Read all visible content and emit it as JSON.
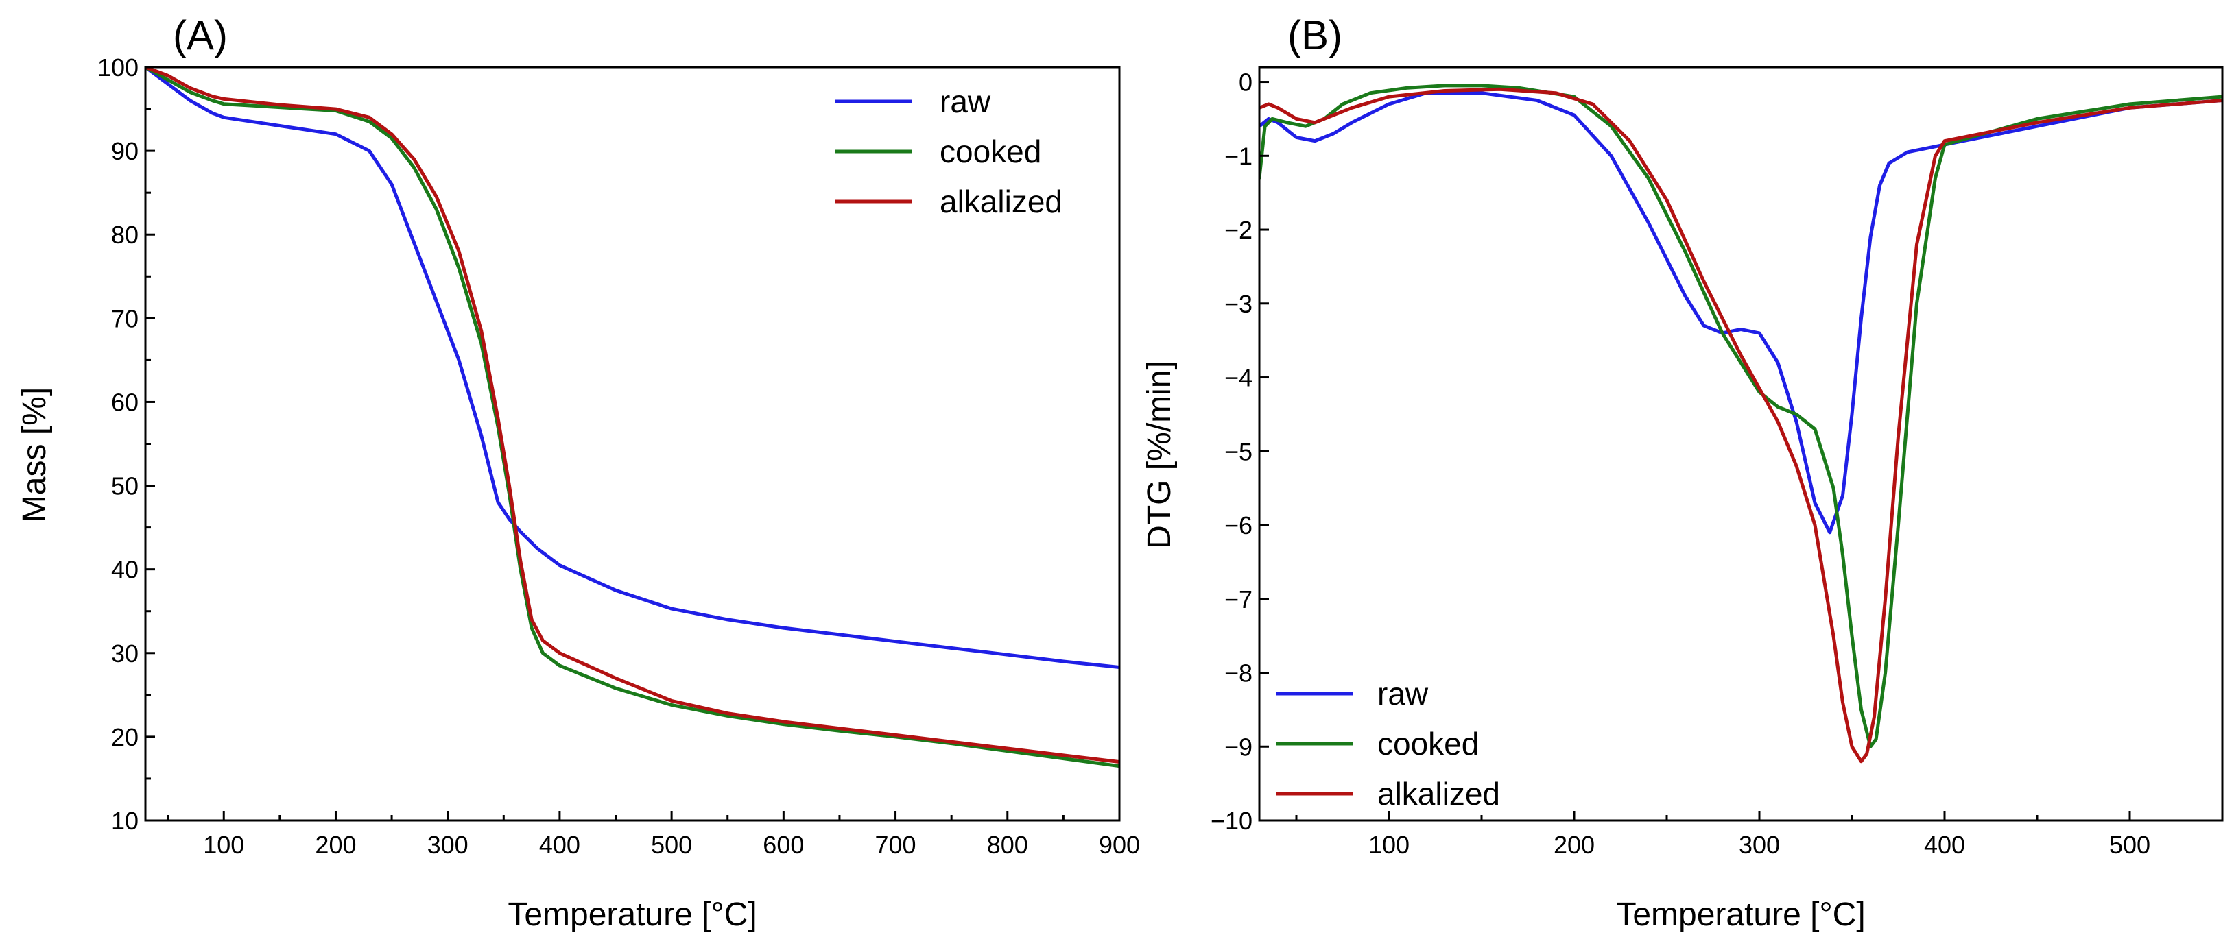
{
  "colors": {
    "raw": "#1f1fe6",
    "cooked": "#1a7a1a",
    "alkalized": "#b31212"
  },
  "chart_data": [
    {
      "type": "line",
      "panel_label": "(A)",
      "xlabel": "Temperature [°C]",
      "ylabel": "Mass [%]",
      "xlim": [
        30,
        900
      ],
      "ylim": [
        10,
        100
      ],
      "xticks": [
        100,
        200,
        300,
        400,
        500,
        600,
        700,
        800,
        900
      ],
      "yticks": [
        10,
        20,
        30,
        40,
        50,
        60,
        70,
        80,
        90,
        100
      ],
      "grid": false,
      "legend_position": "top-right",
      "series": [
        {
          "name": "raw",
          "color_key": "raw",
          "x": [
            30,
            50,
            70,
            90,
            100,
            150,
            200,
            230,
            250,
            270,
            290,
            310,
            330,
            345,
            355,
            365,
            380,
            400,
            450,
            500,
            550,
            600,
            650,
            700,
            750,
            800,
            850,
            900
          ],
          "y": [
            100,
            98,
            96,
            94.5,
            94,
            93,
            92,
            90,
            86,
            79,
            72,
            65,
            56,
            48,
            46,
            44.5,
            42.5,
            40.5,
            37.5,
            35.3,
            34,
            33,
            32.2,
            31.4,
            30.6,
            29.8,
            29,
            28.3
          ]
        },
        {
          "name": "cooked",
          "color_key": "cooked",
          "x": [
            30,
            50,
            70,
            90,
            100,
            150,
            200,
            230,
            250,
            270,
            290,
            310,
            330,
            345,
            355,
            365,
            375,
            385,
            400,
            450,
            500,
            550,
            600,
            650,
            700,
            750,
            800,
            850,
            900
          ],
          "y": [
            100,
            98.5,
            97,
            96,
            95.6,
            95.2,
            94.8,
            93.5,
            91.5,
            88,
            83,
            76,
            67,
            57,
            49,
            40,
            33,
            30,
            28.5,
            25.8,
            23.8,
            22.5,
            21.5,
            20.7,
            20,
            19.2,
            18.3,
            17.4,
            16.5
          ]
        },
        {
          "name": "alkalized",
          "color_key": "alkalized",
          "x": [
            30,
            50,
            70,
            90,
            100,
            150,
            200,
            230,
            250,
            270,
            290,
            310,
            330,
            345,
            355,
            365,
            375,
            385,
            400,
            450,
            500,
            550,
            600,
            650,
            700,
            750,
            800,
            850,
            900
          ],
          "y": [
            100,
            99,
            97.5,
            96.5,
            96.2,
            95.5,
            95,
            94,
            92,
            89,
            84.5,
            78,
            68.5,
            58,
            50,
            41,
            34,
            31.5,
            30,
            27,
            24.3,
            22.8,
            21.8,
            21,
            20.2,
            19.4,
            18.6,
            17.8,
            17
          ]
        }
      ]
    },
    {
      "type": "line",
      "panel_label": "(B)",
      "xlabel": "Temperature [°C]",
      "ylabel": "DTG [%/min]",
      "xlim": [
        30,
        550
      ],
      "ylim": [
        -10,
        0.2
      ],
      "xticks": [
        100,
        200,
        300,
        400,
        500
      ],
      "yticks": [
        0,
        -1,
        -2,
        -3,
        -4,
        -5,
        -6,
        -7,
        -8,
        -9,
        -10
      ],
      "grid": false,
      "legend_position": "bottom-left",
      "series": [
        {
          "name": "raw",
          "color_key": "raw",
          "x": [
            30,
            35,
            40,
            50,
            60,
            70,
            80,
            100,
            120,
            150,
            180,
            200,
            220,
            240,
            250,
            260,
            270,
            280,
            290,
            300,
            310,
            320,
            330,
            338,
            345,
            350,
            355,
            360,
            365,
            370,
            380,
            400,
            450,
            500,
            550
          ],
          "y": [
            -0.6,
            -0.5,
            -0.55,
            -0.75,
            -0.8,
            -0.7,
            -0.55,
            -0.3,
            -0.15,
            -0.15,
            -0.25,
            -0.45,
            -1,
            -1.9,
            -2.4,
            -2.9,
            -3.3,
            -3.4,
            -3.35,
            -3.4,
            -3.8,
            -4.6,
            -5.7,
            -6.1,
            -5.6,
            -4.5,
            -3.2,
            -2.1,
            -1.4,
            -1.1,
            -0.95,
            -0.85,
            -0.6,
            -0.35,
            -0.25
          ]
        },
        {
          "name": "cooked",
          "color_key": "cooked",
          "x": [
            30,
            33,
            37,
            45,
            55,
            65,
            75,
            90,
            110,
            130,
            150,
            170,
            200,
            220,
            240,
            260,
            280,
            300,
            310,
            320,
            330,
            340,
            345,
            350,
            355,
            360,
            363,
            368,
            375,
            385,
            395,
            400,
            450,
            500,
            550
          ],
          "y": [
            -1.3,
            -0.6,
            -0.5,
            -0.55,
            -0.6,
            -0.5,
            -0.3,
            -0.15,
            -0.08,
            -0.05,
            -0.05,
            -0.08,
            -0.2,
            -0.6,
            -1.3,
            -2.3,
            -3.4,
            -4.2,
            -4.4,
            -4.5,
            -4.7,
            -5.5,
            -6.4,
            -7.5,
            -8.5,
            -9,
            -8.9,
            -8,
            -6,
            -3,
            -1.3,
            -0.85,
            -0.5,
            -0.3,
            -0.2
          ]
        },
        {
          "name": "alkalized",
          "color_key": "alkalized",
          "x": [
            30,
            35,
            40,
            50,
            60,
            70,
            80,
            100,
            130,
            160,
            190,
            210,
            230,
            250,
            270,
            290,
            310,
            320,
            330,
            340,
            345,
            350,
            355,
            358,
            362,
            368,
            375,
            385,
            395,
            400,
            450,
            500,
            550
          ],
          "y": [
            -0.35,
            -0.3,
            -0.35,
            -0.5,
            -0.55,
            -0.45,
            -0.35,
            -0.2,
            -0.12,
            -0.1,
            -0.15,
            -0.3,
            -0.8,
            -1.6,
            -2.7,
            -3.7,
            -4.6,
            -5.2,
            -6,
            -7.5,
            -8.4,
            -9,
            -9.2,
            -9.1,
            -8.6,
            -7,
            -4.8,
            -2.2,
            -1,
            -0.8,
            -0.55,
            -0.35,
            -0.25
          ]
        }
      ]
    }
  ]
}
